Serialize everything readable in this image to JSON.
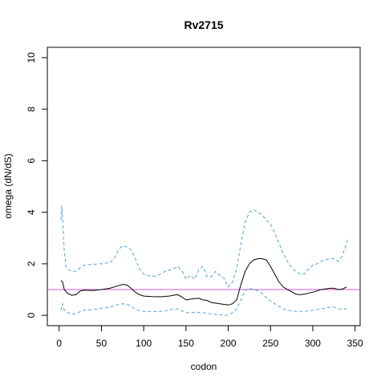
{
  "chart_data": {
    "type": "line",
    "title": "Rv2715",
    "xlabel": "codon",
    "ylabel": "omega (dN/dS)",
    "xlim": [
      -14,
      356
    ],
    "ylim": [
      -0.4,
      10.4
    ],
    "x_ticks": [
      0,
      50,
      100,
      150,
      200,
      250,
      300,
      350
    ],
    "y_ticks": [
      0,
      2,
      4,
      6,
      8,
      10
    ],
    "reference_line": {
      "y": 1,
      "color": "#d257d2"
    },
    "grid": false,
    "series": [
      {
        "style": "solid",
        "color": "#000000",
        "points": [
          [
            2,
            1.35
          ],
          [
            4,
            1.3
          ],
          [
            6,
            1.0
          ],
          [
            10,
            0.85
          ],
          [
            15,
            0.78
          ],
          [
            20,
            0.8
          ],
          [
            25,
            0.95
          ],
          [
            30,
            0.98
          ],
          [
            40,
            0.96
          ],
          [
            50,
            1.0
          ],
          [
            60,
            1.05
          ],
          [
            65,
            1.1
          ],
          [
            70,
            1.15
          ],
          [
            75,
            1.2
          ],
          [
            80,
            1.18
          ],
          [
            85,
            1.05
          ],
          [
            90,
            0.9
          ],
          [
            95,
            0.8
          ],
          [
            100,
            0.75
          ],
          [
            110,
            0.73
          ],
          [
            120,
            0.72
          ],
          [
            130,
            0.75
          ],
          [
            135,
            0.78
          ],
          [
            140,
            0.8
          ],
          [
            145,
            0.72
          ],
          [
            150,
            0.6
          ],
          [
            160,
            0.65
          ],
          [
            165,
            0.66
          ],
          [
            170,
            0.6
          ],
          [
            175,
            0.58
          ],
          [
            180,
            0.5
          ],
          [
            190,
            0.45
          ],
          [
            200,
            0.4
          ],
          [
            205,
            0.45
          ],
          [
            210,
            0.6
          ],
          [
            215,
            1.2
          ],
          [
            220,
            1.7
          ],
          [
            225,
            2.0
          ],
          [
            230,
            2.15
          ],
          [
            235,
            2.2
          ],
          [
            240,
            2.2
          ],
          [
            245,
            2.15
          ],
          [
            250,
            1.9
          ],
          [
            255,
            1.6
          ],
          [
            260,
            1.3
          ],
          [
            265,
            1.1
          ],
          [
            270,
            1.0
          ],
          [
            275,
            0.92
          ],
          [
            280,
            0.82
          ],
          [
            285,
            0.8
          ],
          [
            290,
            0.82
          ],
          [
            300,
            0.9
          ],
          [
            310,
            1.0
          ],
          [
            320,
            1.05
          ],
          [
            325,
            1.05
          ],
          [
            330,
            1.0
          ],
          [
            335,
            1.02
          ],
          [
            340,
            1.1
          ]
        ]
      },
      {
        "style": "dashed",
        "color": "#4aa3df",
        "points": [
          [
            2,
            3.7
          ],
          [
            3,
            4.25
          ],
          [
            4,
            3.8
          ],
          [
            6,
            2.5
          ],
          [
            8,
            1.9
          ],
          [
            12,
            1.75
          ],
          [
            15,
            1.7
          ],
          [
            20,
            1.72
          ],
          [
            25,
            1.85
          ],
          [
            30,
            1.95
          ],
          [
            40,
            1.98
          ],
          [
            50,
            2.0
          ],
          [
            60,
            2.05
          ],
          [
            65,
            2.2
          ],
          [
            70,
            2.55
          ],
          [
            75,
            2.7
          ],
          [
            80,
            2.65
          ],
          [
            85,
            2.55
          ],
          [
            90,
            2.2
          ],
          [
            95,
            1.8
          ],
          [
            100,
            1.6
          ],
          [
            110,
            1.5
          ],
          [
            120,
            1.6
          ],
          [
            125,
            1.7
          ],
          [
            130,
            1.75
          ],
          [
            135,
            1.8
          ],
          [
            140,
            1.9
          ],
          [
            145,
            1.75
          ],
          [
            150,
            1.4
          ],
          [
            155,
            1.55
          ],
          [
            160,
            1.4
          ],
          [
            165,
            1.75
          ],
          [
            170,
            1.9
          ],
          [
            175,
            1.5
          ],
          [
            180,
            1.5
          ],
          [
            185,
            1.7
          ],
          [
            190,
            1.55
          ],
          [
            195,
            1.45
          ],
          [
            200,
            1.1
          ],
          [
            205,
            1.3
          ],
          [
            210,
            1.8
          ],
          [
            215,
            2.8
          ],
          [
            220,
            3.6
          ],
          [
            225,
            4.0
          ],
          [
            230,
            4.1
          ],
          [
            235,
            4.0
          ],
          [
            240,
            3.9
          ],
          [
            245,
            3.7
          ],
          [
            250,
            3.55
          ],
          [
            255,
            3.2
          ],
          [
            260,
            2.8
          ],
          [
            265,
            2.4
          ],
          [
            270,
            2.1
          ],
          [
            275,
            1.85
          ],
          [
            280,
            1.7
          ],
          [
            285,
            1.6
          ],
          [
            290,
            1.6
          ],
          [
            295,
            1.8
          ],
          [
            300,
            1.95
          ],
          [
            305,
            2.0
          ],
          [
            310,
            2.1
          ],
          [
            320,
            2.2
          ],
          [
            325,
            2.2
          ],
          [
            330,
            2.1
          ],
          [
            335,
            2.3
          ],
          [
            338,
            2.6
          ],
          [
            342,
            3.0
          ]
        ]
      },
      {
        "style": "dashed",
        "color": "#4aa3df",
        "points": [
          [
            2,
            0.2
          ],
          [
            4,
            0.45
          ],
          [
            6,
            0.2
          ],
          [
            10,
            0.1
          ],
          [
            15,
            0.05
          ],
          [
            20,
            0.05
          ],
          [
            25,
            0.15
          ],
          [
            30,
            0.2
          ],
          [
            40,
            0.22
          ],
          [
            50,
            0.28
          ],
          [
            60,
            0.32
          ],
          [
            65,
            0.38
          ],
          [
            70,
            0.42
          ],
          [
            75,
            0.45
          ],
          [
            80,
            0.43
          ],
          [
            85,
            0.35
          ],
          [
            90,
            0.25
          ],
          [
            95,
            0.18
          ],
          [
            100,
            0.15
          ],
          [
            110,
            0.14
          ],
          [
            120,
            0.15
          ],
          [
            130,
            0.2
          ],
          [
            135,
            0.25
          ],
          [
            140,
            0.25
          ],
          [
            145,
            0.18
          ],
          [
            150,
            0.1
          ],
          [
            160,
            0.12
          ],
          [
            170,
            0.1
          ],
          [
            175,
            0.08
          ],
          [
            180,
            0.05
          ],
          [
            190,
            0.03
          ],
          [
            200,
            0.0
          ],
          [
            205,
            0.1
          ],
          [
            210,
            0.25
          ],
          [
            215,
            0.6
          ],
          [
            220,
            0.95
          ],
          [
            225,
            1.05
          ],
          [
            230,
            1.0
          ],
          [
            235,
            0.95
          ],
          [
            240,
            0.85
          ],
          [
            245,
            0.7
          ],
          [
            250,
            0.55
          ],
          [
            255,
            0.45
          ],
          [
            260,
            0.35
          ],
          [
            265,
            0.25
          ],
          [
            270,
            0.2
          ],
          [
            280,
            0.15
          ],
          [
            290,
            0.15
          ],
          [
            300,
            0.2
          ],
          [
            310,
            0.25
          ],
          [
            320,
            0.32
          ],
          [
            325,
            0.32
          ],
          [
            330,
            0.25
          ],
          [
            335,
            0.25
          ],
          [
            340,
            0.25
          ]
        ]
      }
    ]
  }
}
